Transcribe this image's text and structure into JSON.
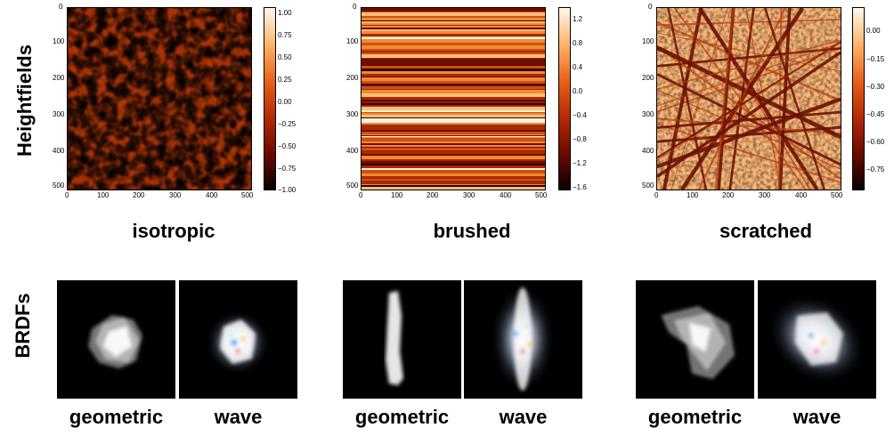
{
  "row_labels": {
    "heightfields": "Heightfields",
    "brdfs": "BRDFs"
  },
  "panels": [
    {
      "title": "isotropic",
      "x_ticks": [
        "0",
        "100",
        "200",
        "300",
        "400",
        "500"
      ],
      "y_ticks": [
        "0",
        "100",
        "200",
        "300",
        "400",
        "500"
      ],
      "colorbar_ticks": [
        "1.00",
        "0.75",
        "0.50",
        "0.25",
        "0.00",
        "−0.25",
        "−0.50",
        "−0.75",
        "−1.00"
      ],
      "brdf_labels": {
        "geometric": "geometric",
        "wave": "wave"
      }
    },
    {
      "title": "brushed",
      "x_ticks": [
        "0",
        "100",
        "200",
        "300",
        "400",
        "500"
      ],
      "y_ticks": [
        "0",
        "100",
        "200",
        "300",
        "400",
        "500"
      ],
      "colorbar_ticks": [
        "1.2",
        "0.8",
        "0.4",
        "0.0",
        "−0.4",
        "−0.8",
        "−1.2",
        "−1.6"
      ],
      "brdf_labels": {
        "geometric": "geometric",
        "wave": "wave"
      }
    },
    {
      "title": "scratched",
      "x_ticks": [
        "0",
        "100",
        "200",
        "300",
        "400",
        "500"
      ],
      "y_ticks": [
        "0",
        "100",
        "200",
        "300",
        "400",
        "500"
      ],
      "colorbar_ticks": [
        "0.00",
        "−0.15",
        "−0.30",
        "−0.45",
        "−0.60",
        "−0.75"
      ],
      "brdf_labels": {
        "geometric": "geometric",
        "wave": "wave"
      }
    }
  ],
  "colors": {
    "heat_dark": "#1a0000",
    "heat_mid": "#c0390b",
    "heat_light": "#fff5e6"
  }
}
